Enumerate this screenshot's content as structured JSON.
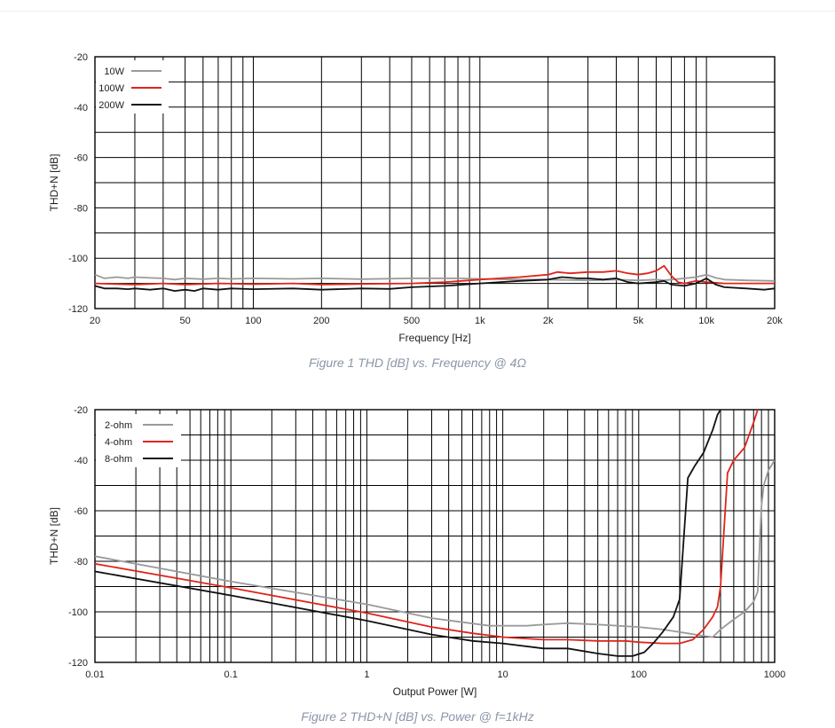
{
  "colors": {
    "gray": "#9a9a9a",
    "red": "#e0241b",
    "black": "#111111"
  },
  "chart_data": [
    {
      "type": "line",
      "xscale": "log",
      "xlim": [
        20,
        20000
      ],
      "ylim": [
        -120,
        -20
      ],
      "xlabel": "Frequency [Hz]",
      "ylabel": "THD+N [dB]",
      "caption": "Figure 1 THD [dB] vs. Frequency @ 4Ω",
      "legend_position": "top-left",
      "grid": true,
      "xticks": [
        {
          "v": 20,
          "label": "20"
        },
        {
          "v": 50,
          "label": "50"
        },
        {
          "v": 100,
          "label": "100"
        },
        {
          "v": 200,
          "label": "200"
        },
        {
          "v": 500,
          "label": "500"
        },
        {
          "v": 1000,
          "label": "1k"
        },
        {
          "v": 2000,
          "label": "2k"
        },
        {
          "v": 5000,
          "label": "5k"
        },
        {
          "v": 10000,
          "label": "10k"
        },
        {
          "v": 20000,
          "label": "20k"
        }
      ],
      "yticks": [
        -20,
        -40,
        -60,
        -80,
        -100,
        -120
      ],
      "series": [
        {
          "name": "10W",
          "color": "gray",
          "points": [
            [
              20,
              -106.5
            ],
            [
              22,
              -108
            ],
            [
              25,
              -107.5
            ],
            [
              28,
              -108
            ],
            [
              30,
              -107.5
            ],
            [
              35,
              -107.8
            ],
            [
              40,
              -108
            ],
            [
              45,
              -108.5
            ],
            [
              50,
              -108
            ],
            [
              60,
              -108.3
            ],
            [
              70,
              -108
            ],
            [
              80,
              -108.2
            ],
            [
              100,
              -108
            ],
            [
              150,
              -108.2
            ],
            [
              200,
              -108
            ],
            [
              300,
              -108.3
            ],
            [
              500,
              -108
            ],
            [
              800,
              -108
            ],
            [
              1000,
              -108.2
            ],
            [
              1500,
              -108.5
            ],
            [
              2000,
              -108.5
            ],
            [
              3000,
              -108.8
            ],
            [
              4000,
              -108.5
            ],
            [
              5000,
              -108.8
            ],
            [
              6000,
              -108.5
            ],
            [
              6500,
              -108.8
            ],
            [
              7000,
              -108.5
            ],
            [
              8000,
              -108
            ],
            [
              9000,
              -107.5
            ],
            [
              10000,
              -106.5
            ],
            [
              11000,
              -107.8
            ],
            [
              12000,
              -108.5
            ],
            [
              15000,
              -108.8
            ],
            [
              20000,
              -109
            ]
          ]
        },
        {
          "name": "100W",
          "color": "red",
          "points": [
            [
              20,
              -110
            ],
            [
              30,
              -110.5
            ],
            [
              40,
              -110
            ],
            [
              50,
              -110.5
            ],
            [
              70,
              -110
            ],
            [
              100,
              -110.3
            ],
            [
              150,
              -110
            ],
            [
              200,
              -110.5
            ],
            [
              300,
              -110.2
            ],
            [
              500,
              -110
            ],
            [
              700,
              -109.5
            ],
            [
              1000,
              -108.5
            ],
            [
              1500,
              -107.5
            ],
            [
              2000,
              -106.5
            ],
            [
              2200,
              -105.5
            ],
            [
              2500,
              -106
            ],
            [
              3000,
              -105.5
            ],
            [
              3500,
              -105.5
            ],
            [
              4000,
              -105
            ],
            [
              4500,
              -106
            ],
            [
              5000,
              -106.5
            ],
            [
              5500,
              -106
            ],
            [
              6000,
              -105
            ],
            [
              6500,
              -103
            ],
            [
              7000,
              -107
            ],
            [
              7500,
              -109.5
            ],
            [
              8000,
              -110
            ],
            [
              9000,
              -109
            ],
            [
              10000,
              -109.5
            ],
            [
              12000,
              -110
            ],
            [
              15000,
              -110
            ],
            [
              20000,
              -110
            ]
          ]
        },
        {
          "name": "200W",
          "color": "black",
          "points": [
            [
              20,
              -111
            ],
            [
              22,
              -112
            ],
            [
              25,
              -112
            ],
            [
              28,
              -112.3
            ],
            [
              30,
              -112
            ],
            [
              35,
              -112.5
            ],
            [
              40,
              -112
            ],
            [
              45,
              -113
            ],
            [
              50,
              -112.5
            ],
            [
              55,
              -113
            ],
            [
              60,
              -112
            ],
            [
              70,
              -112.5
            ],
            [
              80,
              -112
            ],
            [
              100,
              -112.3
            ],
            [
              150,
              -112
            ],
            [
              200,
              -112.5
            ],
            [
              300,
              -112
            ],
            [
              400,
              -112.2
            ],
            [
              500,
              -111.5
            ],
            [
              700,
              -111
            ],
            [
              1000,
              -110
            ],
            [
              1500,
              -109
            ],
            [
              2000,
              -108.5
            ],
            [
              2300,
              -107.5
            ],
            [
              2700,
              -108
            ],
            [
              3000,
              -108
            ],
            [
              3500,
              -108.5
            ],
            [
              4000,
              -108
            ],
            [
              4500,
              -109.5
            ],
            [
              5000,
              -110
            ],
            [
              6000,
              -109.5
            ],
            [
              6500,
              -109
            ],
            [
              7000,
              -110.5
            ],
            [
              8000,
              -111
            ],
            [
              9000,
              -110
            ],
            [
              10000,
              -108
            ],
            [
              11000,
              -110.5
            ],
            [
              12000,
              -111.5
            ],
            [
              15000,
              -112
            ],
            [
              18000,
              -112.5
            ],
            [
              20000,
              -112
            ]
          ]
        }
      ]
    },
    {
      "type": "line",
      "xscale": "log",
      "xlim": [
        0.01,
        1000
      ],
      "ylim": [
        -120,
        -20
      ],
      "xlabel": "Output Power [W]",
      "ylabel": "THD+N [dB]",
      "caption": "Figure 2 THD+N [dB] vs. Power @ f=1kHz",
      "legend_position": "top-left",
      "grid": true,
      "xticks": [
        {
          "v": 0.01,
          "label": "0.01"
        },
        {
          "v": 0.1,
          "label": "0.1"
        },
        {
          "v": 1,
          "label": "1"
        },
        {
          "v": 10,
          "label": "10"
        },
        {
          "v": 100,
          "label": "100"
        },
        {
          "v": 1000,
          "label": "1000"
        }
      ],
      "yticks": [
        -20,
        -40,
        -60,
        -80,
        -100,
        -120
      ],
      "series": [
        {
          "name": "2-ohm",
          "color": "gray",
          "points": [
            [
              0.01,
              -78
            ],
            [
              0.1,
              -88
            ],
            [
              1,
              -97
            ],
            [
              3,
              -102.5
            ],
            [
              8,
              -105.5
            ],
            [
              15,
              -105.5
            ],
            [
              20,
              -105
            ],
            [
              30,
              -104.5
            ],
            [
              50,
              -105
            ],
            [
              100,
              -106
            ],
            [
              150,
              -107
            ],
            [
              200,
              -108
            ],
            [
              300,
              -109.5
            ],
            [
              350,
              -110
            ],
            [
              400,
              -107
            ],
            [
              500,
              -103
            ],
            [
              600,
              -100
            ],
            [
              700,
              -96
            ],
            [
              750,
              -92
            ],
            [
              780,
              -70
            ],
            [
              800,
              -58
            ],
            [
              830,
              -50
            ],
            [
              900,
              -44
            ],
            [
              1000,
              -40
            ]
          ]
        },
        {
          "name": "4-ohm",
          "color": "red",
          "points": [
            [
              0.01,
              -81
            ],
            [
              0.1,
              -90.5
            ],
            [
              1,
              -100.5
            ],
            [
              3,
              -106
            ],
            [
              6,
              -108.5
            ],
            [
              10,
              -110
            ],
            [
              20,
              -111
            ],
            [
              30,
              -111
            ],
            [
              50,
              -111.5
            ],
            [
              80,
              -111.5
            ],
            [
              100,
              -112
            ],
            [
              150,
              -112.5
            ],
            [
              200,
              -112.5
            ],
            [
              250,
              -111
            ],
            [
              300,
              -107
            ],
            [
              350,
              -102
            ],
            [
              380,
              -98
            ],
            [
              400,
              -90
            ],
            [
              450,
              -45
            ],
            [
              500,
              -40
            ],
            [
              600,
              -35
            ],
            [
              700,
              -25
            ],
            [
              750,
              -20
            ]
          ]
        },
        {
          "name": "8-ohm",
          "color": "black",
          "points": [
            [
              0.01,
              -84
            ],
            [
              0.1,
              -93.5
            ],
            [
              1,
              -103.5
            ],
            [
              3,
              -109
            ],
            [
              6,
              -111.5
            ],
            [
              10,
              -112.5
            ],
            [
              20,
              -114.5
            ],
            [
              30,
              -114.5
            ],
            [
              50,
              -116.5
            ],
            [
              70,
              -117.5
            ],
            [
              90,
              -117.5
            ],
            [
              110,
              -116
            ],
            [
              130,
              -112
            ],
            [
              150,
              -108
            ],
            [
              180,
              -102
            ],
            [
              200,
              -95
            ],
            [
              230,
              -47
            ],
            [
              260,
              -42
            ],
            [
              300,
              -37
            ],
            [
              350,
              -28
            ],
            [
              380,
              -22
            ],
            [
              400,
              -20
            ]
          ]
        }
      ]
    }
  ]
}
